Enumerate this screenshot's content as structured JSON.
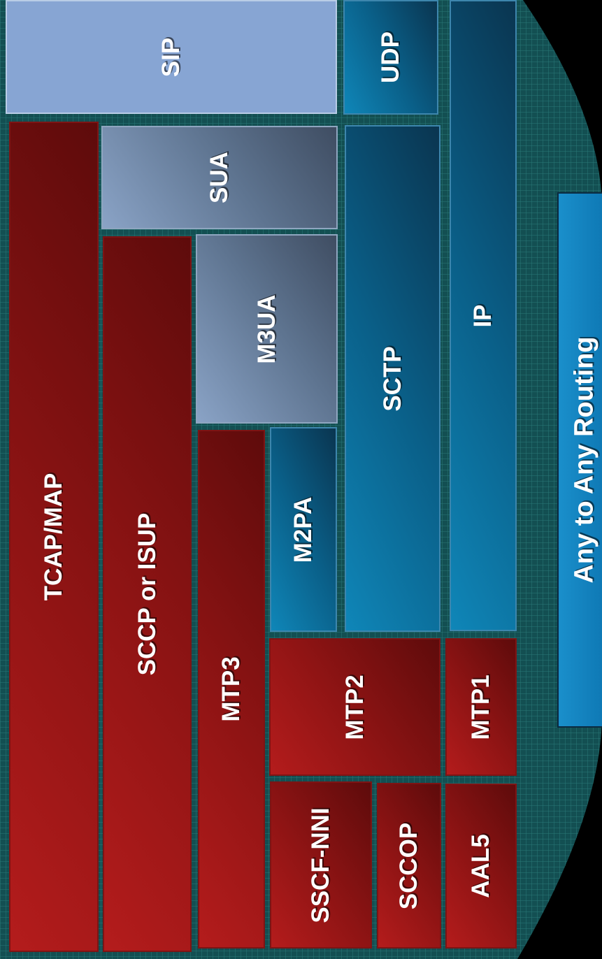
{
  "colors": {
    "background": "#000000",
    "grid_teal": "#1a5a5a",
    "red_block": "#a01a1a",
    "blue_block": "#0a6a9a",
    "gray_block": "#6f86a6",
    "light_block": "#87a5d3",
    "routing_box": "#1488c4"
  },
  "blocks": {
    "sip": "SIP",
    "udp": "UDP",
    "ip": "IP",
    "sua": "SUA",
    "m3ua": "M3UA",
    "sctp": "SCTP",
    "m2pa": "M2PA",
    "tcap_map": "TCAP/MAP",
    "sccp_isup": "SCCP or ISUP",
    "mtp3": "MTP3",
    "mtp2": "MTP2",
    "mtp1": "MTP1",
    "sscf_nni": "SSCF-NNI",
    "sccop": "SCCOP",
    "aal5": "AAL5"
  },
  "routing": {
    "label": "Any to Any Routing"
  }
}
